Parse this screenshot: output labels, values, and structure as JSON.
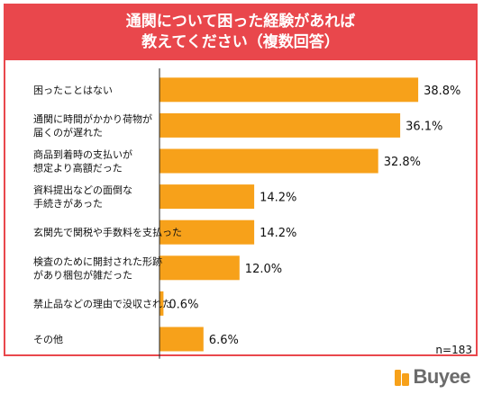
{
  "header": {
    "title_line1": "通関について困った経験があれば",
    "title_line2": "教えてください（複数回答）"
  },
  "sample_note": "n=183",
  "brand": {
    "name": "Buyee",
    "color": "#6b6b6b",
    "mark_color": "#f7a11a"
  },
  "colors": {
    "bar": "#f7a11a",
    "accent": "#e9474c"
  },
  "chart_data": {
    "type": "bar",
    "orientation": "horizontal",
    "categories": [
      [
        "困ったことはない"
      ],
      [
        "通関に時間がかかり荷物が",
        "届くのが遅れた"
      ],
      [
        "商品到着時の支払いが",
        "想定より高額だった"
      ],
      [
        "資料提出などの面倒な",
        "手続きがあった"
      ],
      [
        "玄関先で関税や手数料を支払った"
      ],
      [
        "検査のために開封された形跡",
        "があり梱包が雑だった"
      ],
      [
        "禁止品などの理由で没収された"
      ],
      [
        "その他"
      ]
    ],
    "values": [
      38.8,
      36.1,
      32.8,
      14.2,
      14.2,
      12.0,
      0.6,
      6.6
    ],
    "value_labels": [
      "38.8%",
      "36.1%",
      "32.8%",
      "14.2%",
      "14.2%",
      "12.0%",
      "0.6%",
      "6.6%"
    ],
    "xlim": [
      0,
      40
    ],
    "grid": false,
    "legend": "none"
  }
}
